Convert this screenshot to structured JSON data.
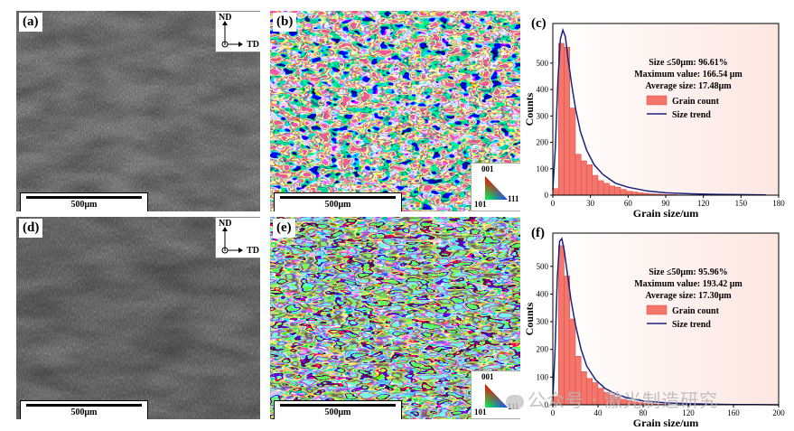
{
  "panels": [
    {
      "id": "a",
      "label": "(a)",
      "kind": "sem",
      "scale_text": "500μm",
      "axes": {
        "nd": "ND",
        "td": "TD"
      }
    },
    {
      "id": "b",
      "label": "(b)",
      "kind": "ebsd",
      "scale_text": "500μm",
      "ipf": {
        "top": "001",
        "left": "101",
        "right": "111"
      }
    },
    {
      "id": "d",
      "label": "(d)",
      "kind": "sem",
      "scale_text": "500μm",
      "axes": {
        "nd": "ND",
        "td": "TD"
      }
    },
    {
      "id": "e",
      "label": "(e)",
      "kind": "ebsd",
      "scale_text": "500μm",
      "ipf": {
        "top": "001",
        "left": "101",
        "right": "111"
      }
    }
  ],
  "chart_data": [
    {
      "type": "bar",
      "panel_label": "(c)",
      "xlabel": "Grain size/μm",
      "ylabel": "Counts",
      "xlim": [
        0,
        180
      ],
      "ylim": [
        0,
        650
      ],
      "xticks": [
        0,
        30,
        60,
        90,
        120,
        150,
        180
      ],
      "yticks": [
        0,
        100,
        200,
        300,
        400,
        500
      ],
      "bin_width": 4.5,
      "bin_starts": [
        0,
        4.5,
        9,
        13.5,
        18,
        22.5,
        27,
        31.5,
        36,
        40.5,
        45,
        49.5,
        54,
        58.5,
        63,
        67.5,
        72,
        76.5,
        81,
        85.5,
        90,
        94.5,
        99,
        103.5
      ],
      "values": [
        25,
        575,
        560,
        330,
        155,
        130,
        115,
        75,
        55,
        45,
        35,
        30,
        22,
        15,
        12,
        9,
        7,
        5,
        4,
        3,
        2,
        2,
        1,
        1
      ],
      "trend_x": [
        0,
        2,
        4,
        6,
        8,
        10,
        12,
        15,
        18,
        22,
        27,
        33,
        40,
        50,
        60,
        75,
        90,
        110,
        130,
        150,
        170
      ],
      "trend_y": [
        20,
        180,
        430,
        590,
        625,
        600,
        520,
        420,
        330,
        240,
        170,
        115,
        78,
        45,
        30,
        16,
        9,
        5,
        3,
        2,
        1
      ],
      "annotations": [
        "Size ≤50μm: 96.61%",
        "Maximum value: 166.54 μm",
        "Average size: 17.48μm"
      ],
      "legend": {
        "bars": "Grain count",
        "line": "Size trend",
        "placement": "center-right"
      },
      "colors": {
        "bar": "#f4756b",
        "bar_edge": "#d94a40",
        "line": "#1a237e",
        "bg_top": "#fde6e2",
        "bg_bottom": "#ffffff"
      }
    },
    {
      "type": "bar",
      "panel_label": "(f)",
      "xlabel": "Grain size/μm",
      "ylabel": "Counts",
      "xlim": [
        0,
        200
      ],
      "ylim": [
        0,
        620
      ],
      "xticks": [
        0,
        40,
        80,
        120,
        160,
        200
      ],
      "yticks": [
        0,
        100,
        200,
        300,
        400,
        500
      ],
      "bin_width": 5,
      "bin_starts": [
        0,
        5,
        10,
        15,
        20,
        25,
        30,
        35,
        40,
        45,
        50,
        55,
        60,
        65,
        70,
        75,
        80,
        85,
        90,
        95,
        100
      ],
      "values": [
        30,
        575,
        465,
        310,
        175,
        120,
        95,
        80,
        60,
        45,
        35,
        28,
        20,
        15,
        11,
        8,
        6,
        4,
        3,
        2,
        2
      ],
      "trend_x": [
        0,
        2,
        4,
        6,
        8,
        10,
        13,
        16,
        20,
        25,
        30,
        38,
        46,
        55,
        65,
        80,
        100,
        120,
        140,
        160,
        180,
        200
      ],
      "trend_y": [
        20,
        200,
        460,
        590,
        600,
        560,
        470,
        380,
        290,
        200,
        140,
        90,
        60,
        40,
        26,
        14,
        7,
        4,
        2,
        1,
        1,
        0
      ],
      "annotations": [
        "Size ≤50μm: 95.96%",
        "Maximum value: 193.42 μm",
        "Average size: 17.30μm"
      ],
      "legend": {
        "bars": "Grain count",
        "line": "Size trend",
        "placement": "center-right"
      },
      "colors": {
        "bar": "#f4756b",
        "bar_edge": "#d94a40",
        "line": "#1a237e",
        "bg_top": "#fde6e2",
        "bg_bottom": "#ffffff"
      }
    }
  ],
  "watermark": "公众号 · 激光制造研究"
}
